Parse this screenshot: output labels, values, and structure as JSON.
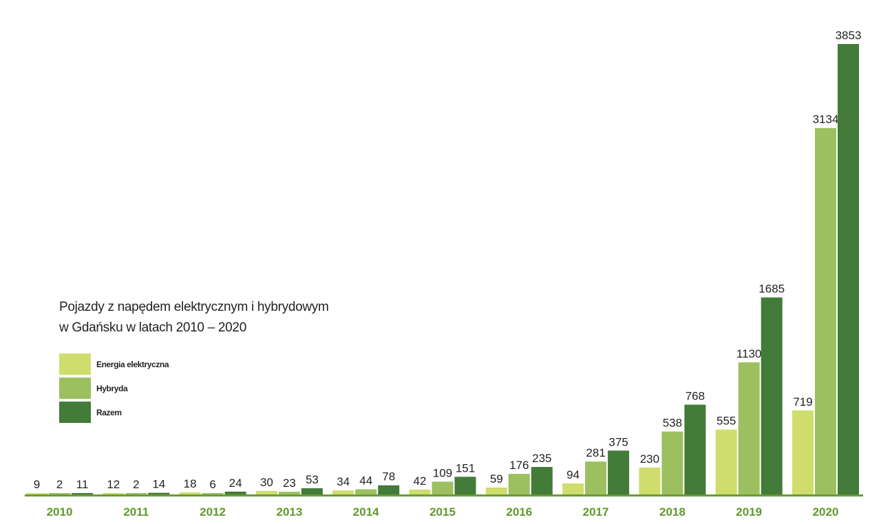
{
  "colors": {
    "energia": "#cfdd6d",
    "hybryda": "#9cc05f",
    "razem": "#437b38",
    "axis": "#6c9a39",
    "year_text": "#5f9a2c",
    "text": "#231f20"
  },
  "chart_data": {
    "type": "bar",
    "title": "Pojazdy z napędem elektrycznym i hybrydowym",
    "subtitle": "w Gdańsku w latach 2010 – 2020",
    "xlabel": "",
    "ylabel": "",
    "ylim": [
      0,
      3853
    ],
    "grid": false,
    "legend_position": "left-middle",
    "categories": [
      "2010",
      "2011",
      "2012",
      "2013",
      "2014",
      "2015",
      "2016",
      "2017",
      "2018",
      "2019",
      "2020"
    ],
    "series": [
      {
        "name": "Energia elektryczna",
        "color_key": "energia",
        "values": [
          9,
          12,
          18,
          30,
          34,
          42,
          59,
          94,
          230,
          555,
          719
        ]
      },
      {
        "name": "Hybryda",
        "color_key": "hybryda",
        "values": [
          2,
          2,
          6,
          23,
          44,
          109,
          176,
          281,
          538,
          1130,
          3134
        ]
      },
      {
        "name": "Razem",
        "color_key": "razem",
        "values": [
          11,
          14,
          24,
          53,
          78,
          151,
          235,
          375,
          768,
          1685,
          3853
        ]
      }
    ]
  }
}
